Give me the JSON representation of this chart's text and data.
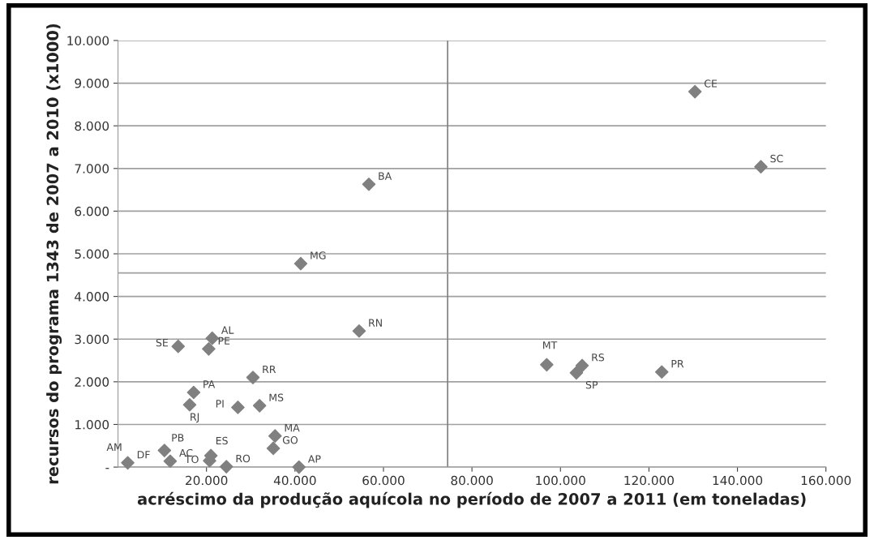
{
  "chart_data": {
    "type": "scatter",
    "xlabel": "acréscimo da produção aquícola no período de 2007 a 2011 (em toneladas)",
    "ylabel": "recursos do programa 1343 de 2007 a 2010 (x1000)",
    "series": [
      {
        "color": "#808080",
        "x": [
          130400,
          145300,
          96900,
          104900,
          103600,
          122900,
          56700,
          41300,
          54500,
          21300,
          13600,
          20500,
          30500,
          17100,
          16200,
          27100,
          32000,
          35500,
          35100,
          40900,
          null,
          2200,
          10500,
          11800,
          20700,
          21000,
          24500
        ],
        "values": [
          8800,
          7040,
          2400,
          2380,
          2210,
          2230,
          6630,
          4770,
          3190,
          3020,
          2830,
          2770,
          2100,
          1750,
          1460,
          1400,
          1440,
          730,
          440,
          0,
          null,
          100,
          390,
          140,
          150,
          270,
          10
        ]
      }
    ],
    "annotations": [
      {
        "text": "CE",
        "x": 130400,
        "y": 8800
      },
      {
        "text": "SC",
        "x": 145300,
        "y": 7040
      },
      {
        "text": "MT",
        "x": 96900,
        "y": 2400
      },
      {
        "text": "RS",
        "x": 104900,
        "y": 2380
      },
      {
        "text": "SP",
        "x": 103600,
        "y": 2210
      },
      {
        "text": "PR",
        "x": 122900,
        "y": 2230
      },
      {
        "text": "BA",
        "x": 56700,
        "y": 6630
      },
      {
        "text": "MG",
        "x": 41300,
        "y": 4770
      },
      {
        "text": "RN",
        "x": 54500,
        "y": 3190
      },
      {
        "text": "AL",
        "x": 21300,
        "y": 3020
      },
      {
        "text": "SE",
        "x": 13600,
        "y": 2830
      },
      {
        "text": "PE",
        "x": 20500,
        "y": 2770
      },
      {
        "text": "RR",
        "x": 30500,
        "y": 2100
      },
      {
        "text": "PA",
        "x": 17100,
        "y": 1750
      },
      {
        "text": "RJ",
        "x": 16200,
        "y": 1460
      },
      {
        "text": "PI",
        "x": 27100,
        "y": 1400
      },
      {
        "text": "MS",
        "x": 32000,
        "y": 1440
      },
      {
        "text": "MA",
        "x": 35500,
        "y": 730
      },
      {
        "text": "GO",
        "x": 35100,
        "y": 440
      },
      {
        "text": "AP",
        "x": 40900,
        "y": 0
      },
      {
        "text": "AM",
        "x": 2000,
        "y": 120
      },
      {
        "text": "DF",
        "x": 2200,
        "y": 100
      },
      {
        "text": "PB",
        "x": 10500,
        "y": 390
      },
      {
        "text": "AC",
        "x": 11800,
        "y": 140
      },
      {
        "text": "TO",
        "x": 20700,
        "y": 150
      },
      {
        "text": "ES",
        "x": 21000,
        "y": 270
      },
      {
        "text": "RO",
        "x": 24500,
        "y": 10
      }
    ],
    "xlim": [
      0,
      160000
    ],
    "xticks": [
      {
        "value": 20000,
        "label": "20.000"
      },
      {
        "value": 40000,
        "label": "40.000"
      },
      {
        "value": 60000,
        "label": "60.000"
      },
      {
        "value": 80000,
        "label": "80.000"
      },
      {
        "value": 100000,
        "label": "100.000"
      },
      {
        "value": 120000,
        "label": "120.000"
      },
      {
        "value": 140000,
        "label": "140.000"
      },
      {
        "value": 160000,
        "label": "160.000"
      }
    ],
    "ylim": [
      0,
      10000
    ],
    "yticks": [
      {
        "value": 0,
        "label": "-"
      },
      {
        "value": 1000,
        "label": "1.000"
      },
      {
        "value": 2000,
        "label": "2.000"
      },
      {
        "value": 3000,
        "label": "3.000"
      },
      {
        "value": 4000,
        "label": "4.000"
      },
      {
        "value": 5000,
        "label": "5.000"
      },
      {
        "value": 6000,
        "label": "6.000"
      },
      {
        "value": 7000,
        "label": "7.000"
      },
      {
        "value": 8000,
        "label": "8.000"
      },
      {
        "value": 9000,
        "label": "9.000"
      },
      {
        "value": 10000,
        "label": "10.000"
      }
    ],
    "ref_lines": [
      {
        "axis": "x",
        "value": 74500,
        "color": "#808080"
      },
      {
        "axis": "y",
        "value": 4550,
        "color": "#a0a0a0"
      }
    ],
    "grid": "y",
    "marker": "diamond",
    "legend": false
  }
}
